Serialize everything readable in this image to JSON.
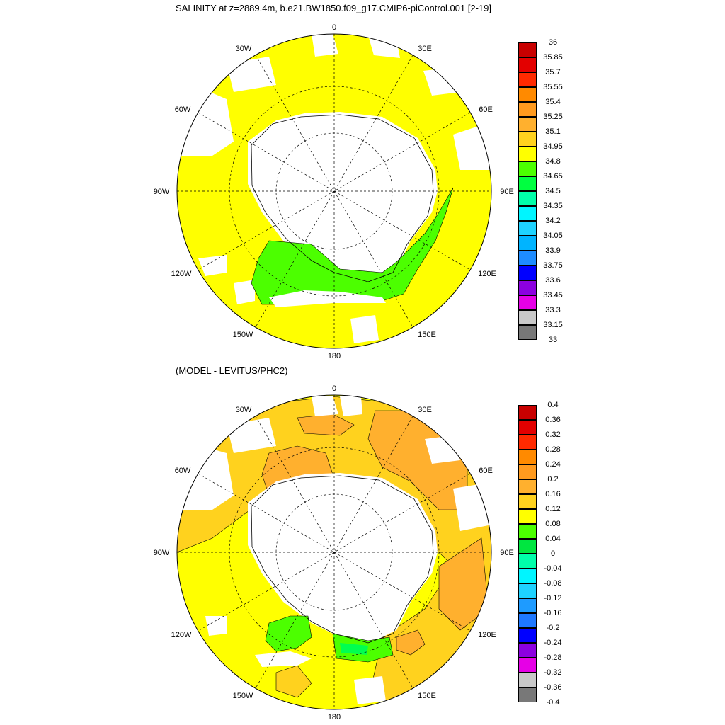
{
  "top_panel": {
    "title": "SALINITY at z=2889.4m, b.e21.BW1850.f09_g17.CMIP6-piControl.001 [2-19]",
    "lon_labels": {
      "n": "0",
      "ne": "30E",
      "nne": "60E",
      "e": "90E",
      "se": "120E",
      "sse": "150E",
      "s": "180",
      "ssw": "150W",
      "sw": "120W",
      "w": "90W",
      "nnw": "60W",
      "nw": "30W"
    },
    "colorbar": {
      "levels": [
        "36",
        "35.85",
        "35.7",
        "35.55",
        "35.4",
        "35.25",
        "35.1",
        "34.95",
        "34.8",
        "34.65",
        "34.5",
        "34.35",
        "34.2",
        "34.05",
        "33.9",
        "33.75",
        "33.6",
        "33.45",
        "33.3",
        "33.15",
        "33"
      ],
      "colors": [
        "#c80000",
        "#e30000",
        "#ff2a00",
        "#ff8a00",
        "#ff9a1e",
        "#ffb02e",
        "#ffd21e",
        "#ffff00",
        "#4cff00",
        "#00ff40",
        "#00ffaa",
        "#00f5ff",
        "#1ed2ff",
        "#00b4ff",
        "#1e8cff",
        "#0000ff",
        "#8c00e0",
        "#e600e6",
        "#c8c8c8",
        "#787878"
      ]
    }
  },
  "bottom_panel": {
    "title": "(MODEL - LEVITUS/PHC2)",
    "lon_labels": {
      "n": "0",
      "ne": "30E",
      "nne": "60E",
      "e": "90E",
      "se": "120E",
      "sse": "150E",
      "s": "180",
      "ssw": "150W",
      "sw": "120W",
      "w": "90W",
      "nnw": "60W",
      "nw": "30W"
    },
    "colorbar": {
      "levels": [
        "0.4",
        "0.36",
        "0.32",
        "0.28",
        "0.24",
        "0.2",
        "0.16",
        "0.12",
        "0.08",
        "0.04",
        "0",
        "-0.04",
        "-0.08",
        "-0.12",
        "-0.16",
        "-0.2",
        "-0.24",
        "-0.28",
        "-0.32",
        "-0.36",
        "-0.4"
      ],
      "colors": [
        "#c80000",
        "#e30000",
        "#ff2a00",
        "#ff8a00",
        "#ff9a1e",
        "#ffb02e",
        "#ffd21e",
        "#ffff00",
        "#4cff00",
        "#00e640",
        "#00ffaa",
        "#00f5ff",
        "#1ed2ff",
        "#1e9bff",
        "#1e78ff",
        "#0000ff",
        "#8c00e0",
        "#e600e6",
        "#c8c8c8",
        "#787878"
      ]
    }
  },
  "field_colors": {
    "yellow": "#ffff00",
    "green": "#4cff00",
    "light_green": "#00ff50",
    "gold": "#ffd21e",
    "orange": "#ffb02e"
  }
}
